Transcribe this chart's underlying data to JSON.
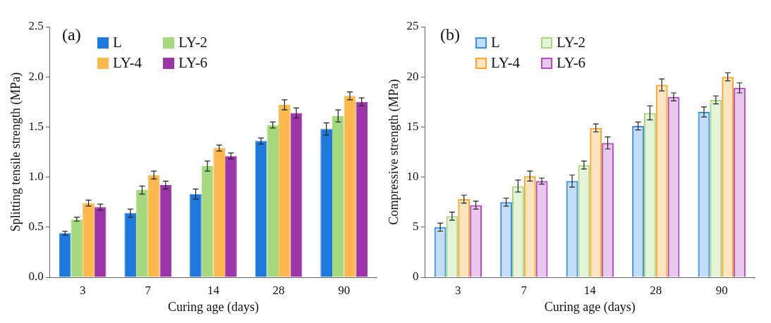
{
  "chart_data": [
    {
      "type": "bar",
      "annotations": [
        "(a)"
      ],
      "xlabel": "Curing age (days)",
      "ylabel": "Splitting tensile strength (MPa)",
      "categories": [
        "3",
        "7",
        "14",
        "28",
        "90"
      ],
      "series": [
        {
          "name": "L",
          "color": "#1f78dc",
          "values": [
            0.44,
            0.64,
            0.83,
            1.36,
            1.48
          ],
          "errors": [
            0.02,
            0.04,
            0.05,
            0.03,
            0.06
          ]
        },
        {
          "name": "LY-2",
          "color": "#a6d97e",
          "values": [
            0.58,
            0.87,
            1.11,
            1.52,
            1.61
          ],
          "errors": [
            0.02,
            0.04,
            0.05,
            0.03,
            0.06
          ]
        },
        {
          "name": "LY-4",
          "color": "#fdb94e",
          "values": [
            0.74,
            1.02,
            1.29,
            1.72,
            1.81
          ],
          "errors": [
            0.03,
            0.04,
            0.03,
            0.05,
            0.04
          ]
        },
        {
          "name": "LY-6",
          "color": "#9b35a8",
          "values": [
            0.7,
            0.92,
            1.21,
            1.64,
            1.75
          ],
          "errors": [
            0.03,
            0.04,
            0.03,
            0.05,
            0.04
          ]
        }
      ],
      "ylim": [
        0,
        2.5
      ],
      "yticks": [
        {
          "value": 0,
          "label": "0.0"
        },
        0.5,
        {
          "value": 1,
          "label": "1.0"
        },
        1.5,
        {
          "value": 2,
          "label": "2.0"
        },
        2.5
      ],
      "grid": false,
      "legend": "top left"
    },
    {
      "type": "bar",
      "annotations": [
        "(b)"
      ],
      "xlabel": "Curing age (days)",
      "ylabel": "Compressive strength (MPa)",
      "categories": [
        "3",
        "7",
        "14",
        "28",
        "90"
      ],
      "series": [
        {
          "name": "L",
          "color": "#3d8ee6",
          "values": [
            5.0,
            7.5,
            9.6,
            15.1,
            16.5
          ],
          "errors": [
            0.4,
            0.4,
            0.6,
            0.4,
            0.5
          ]
        },
        {
          "name": "LY-2",
          "color": "#a6d97e",
          "values": [
            6.1,
            9.1,
            11.2,
            16.4,
            17.7
          ],
          "errors": [
            0.4,
            0.6,
            0.4,
            0.7,
            0.4
          ]
        },
        {
          "name": "LY-4",
          "color": "#fda62a",
          "values": [
            7.8,
            10.1,
            14.9,
            19.2,
            20.0
          ],
          "errors": [
            0.4,
            0.5,
            0.4,
            0.6,
            0.4
          ]
        },
        {
          "name": "LY-6",
          "color": "#b44cc4",
          "values": [
            7.2,
            9.6,
            13.4,
            18.0,
            18.9
          ],
          "errors": [
            0.4,
            0.3,
            0.6,
            0.4,
            0.5
          ]
        }
      ],
      "ylim": [
        0,
        25
      ],
      "yticks": [
        0,
        5,
        10,
        15,
        20,
        25
      ],
      "grid": false,
      "legend": "top left"
    }
  ]
}
